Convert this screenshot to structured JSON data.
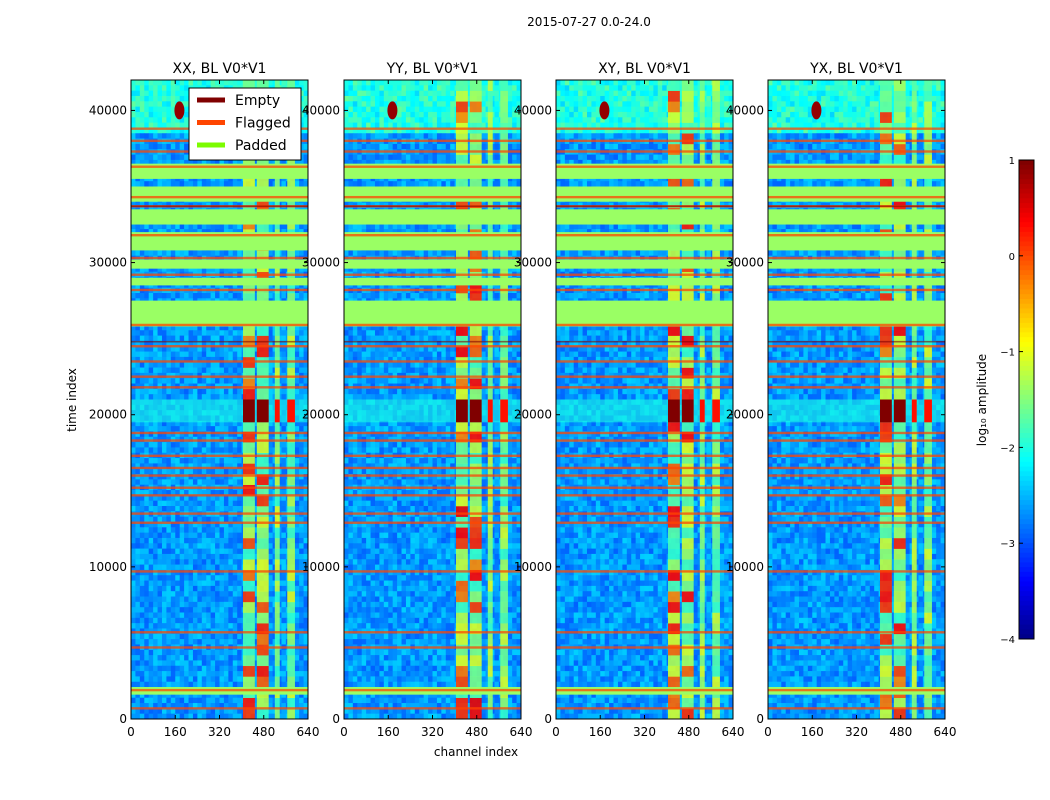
{
  "figure_title": "2015-07-27 0.0-24.0",
  "xlabel": "channel index",
  "ylabel": "time index",
  "legend": {
    "position": "upper-right of first panel",
    "entries": [
      {
        "label": "Empty",
        "color": "#800000"
      },
      {
        "label": "Flagged",
        "color": "#ff4500"
      },
      {
        "label": "Padded",
        "color": "#7cfc00"
      }
    ]
  },
  "colorbar": {
    "label": "log₁₀ amplitude",
    "range": [
      -4,
      1
    ],
    "ticks": [
      1,
      0,
      -1,
      -2,
      -3,
      -4
    ],
    "tick_labels": [
      "1",
      "0",
      "−1",
      "−2",
      "−3",
      "−4"
    ],
    "colormap": "jet"
  },
  "chart_data": [
    {
      "type": "heatmap",
      "title": "XX, BL V0*V1",
      "polarization": "XX",
      "xlim": [
        0,
        640
      ],
      "ylim": [
        0,
        42000
      ],
      "xticks": [
        0,
        160,
        320,
        480,
        640
      ],
      "yticks": [
        0,
        10000,
        20000,
        30000,
        40000
      ],
      "xlabel": "",
      "ylabel": "time index",
      "burst_amplitude": 1.0,
      "rfi_bright_channel_amp": 0.7
    },
    {
      "type": "heatmap",
      "title": "YY, BL V0*V1",
      "polarization": "YY",
      "xlim": [
        0,
        640
      ],
      "ylim": [
        0,
        42000
      ],
      "xticks": [
        0,
        160,
        320,
        480,
        640
      ],
      "yticks": [
        0,
        10000,
        20000,
        30000,
        40000
      ],
      "xlabel": "channel index",
      "ylabel": "",
      "burst_amplitude": 1.0,
      "rfi_bright_channel_amp": 0.8
    },
    {
      "type": "heatmap",
      "title": "XY, BL V0*V1",
      "polarization": "XY",
      "xlim": [
        0,
        640
      ],
      "ylim": [
        0,
        42000
      ],
      "xticks": [
        0,
        160,
        320,
        480,
        640
      ],
      "yticks": [
        0,
        10000,
        20000,
        30000,
        40000
      ],
      "xlabel": "",
      "ylabel": "",
      "burst_amplitude": 1.0,
      "rfi_bright_channel_amp": 0.7
    },
    {
      "type": "heatmap",
      "title": "YX, BL V0*V1",
      "polarization": "YX",
      "xlim": [
        0,
        640
      ],
      "ylim": [
        0,
        42000
      ],
      "xticks": [
        0,
        160,
        320,
        480,
        640
      ],
      "yticks": [
        0,
        10000,
        20000,
        30000,
        40000
      ],
      "xlabel": "",
      "ylabel": "",
      "burst_amplitude": 1.0,
      "rfi_bright_channel_amp": 0.7
    }
  ],
  "rfi_channel_bands": [
    [
      405,
      455
    ],
    [
      455,
      505
    ],
    [
      520,
      545
    ],
    [
      565,
      600
    ]
  ],
  "burst_time_range": [
    19500,
    21000
  ],
  "padded_time_ranges": [
    [
      25800,
      27500
    ],
    [
      28500,
      29000
    ],
    [
      29600,
      30200
    ],
    [
      30800,
      32000
    ],
    [
      32500,
      33500
    ],
    [
      34000,
      35000
    ],
    [
      35500,
      36500
    ],
    [
      1600,
      2100
    ]
  ],
  "flagged_time_values": [
    38800,
    38000,
    37300,
    36300,
    33700,
    34300,
    31800,
    30300,
    29200,
    28200,
    25900,
    24500,
    23500,
    22500,
    21800,
    18800,
    18300,
    17300,
    16500,
    16000,
    15200,
    14700,
    13500,
    12900,
    9700,
    5700,
    4700,
    1900,
    700
  ],
  "empty_time_values": [
    33700,
    24800
  ]
}
